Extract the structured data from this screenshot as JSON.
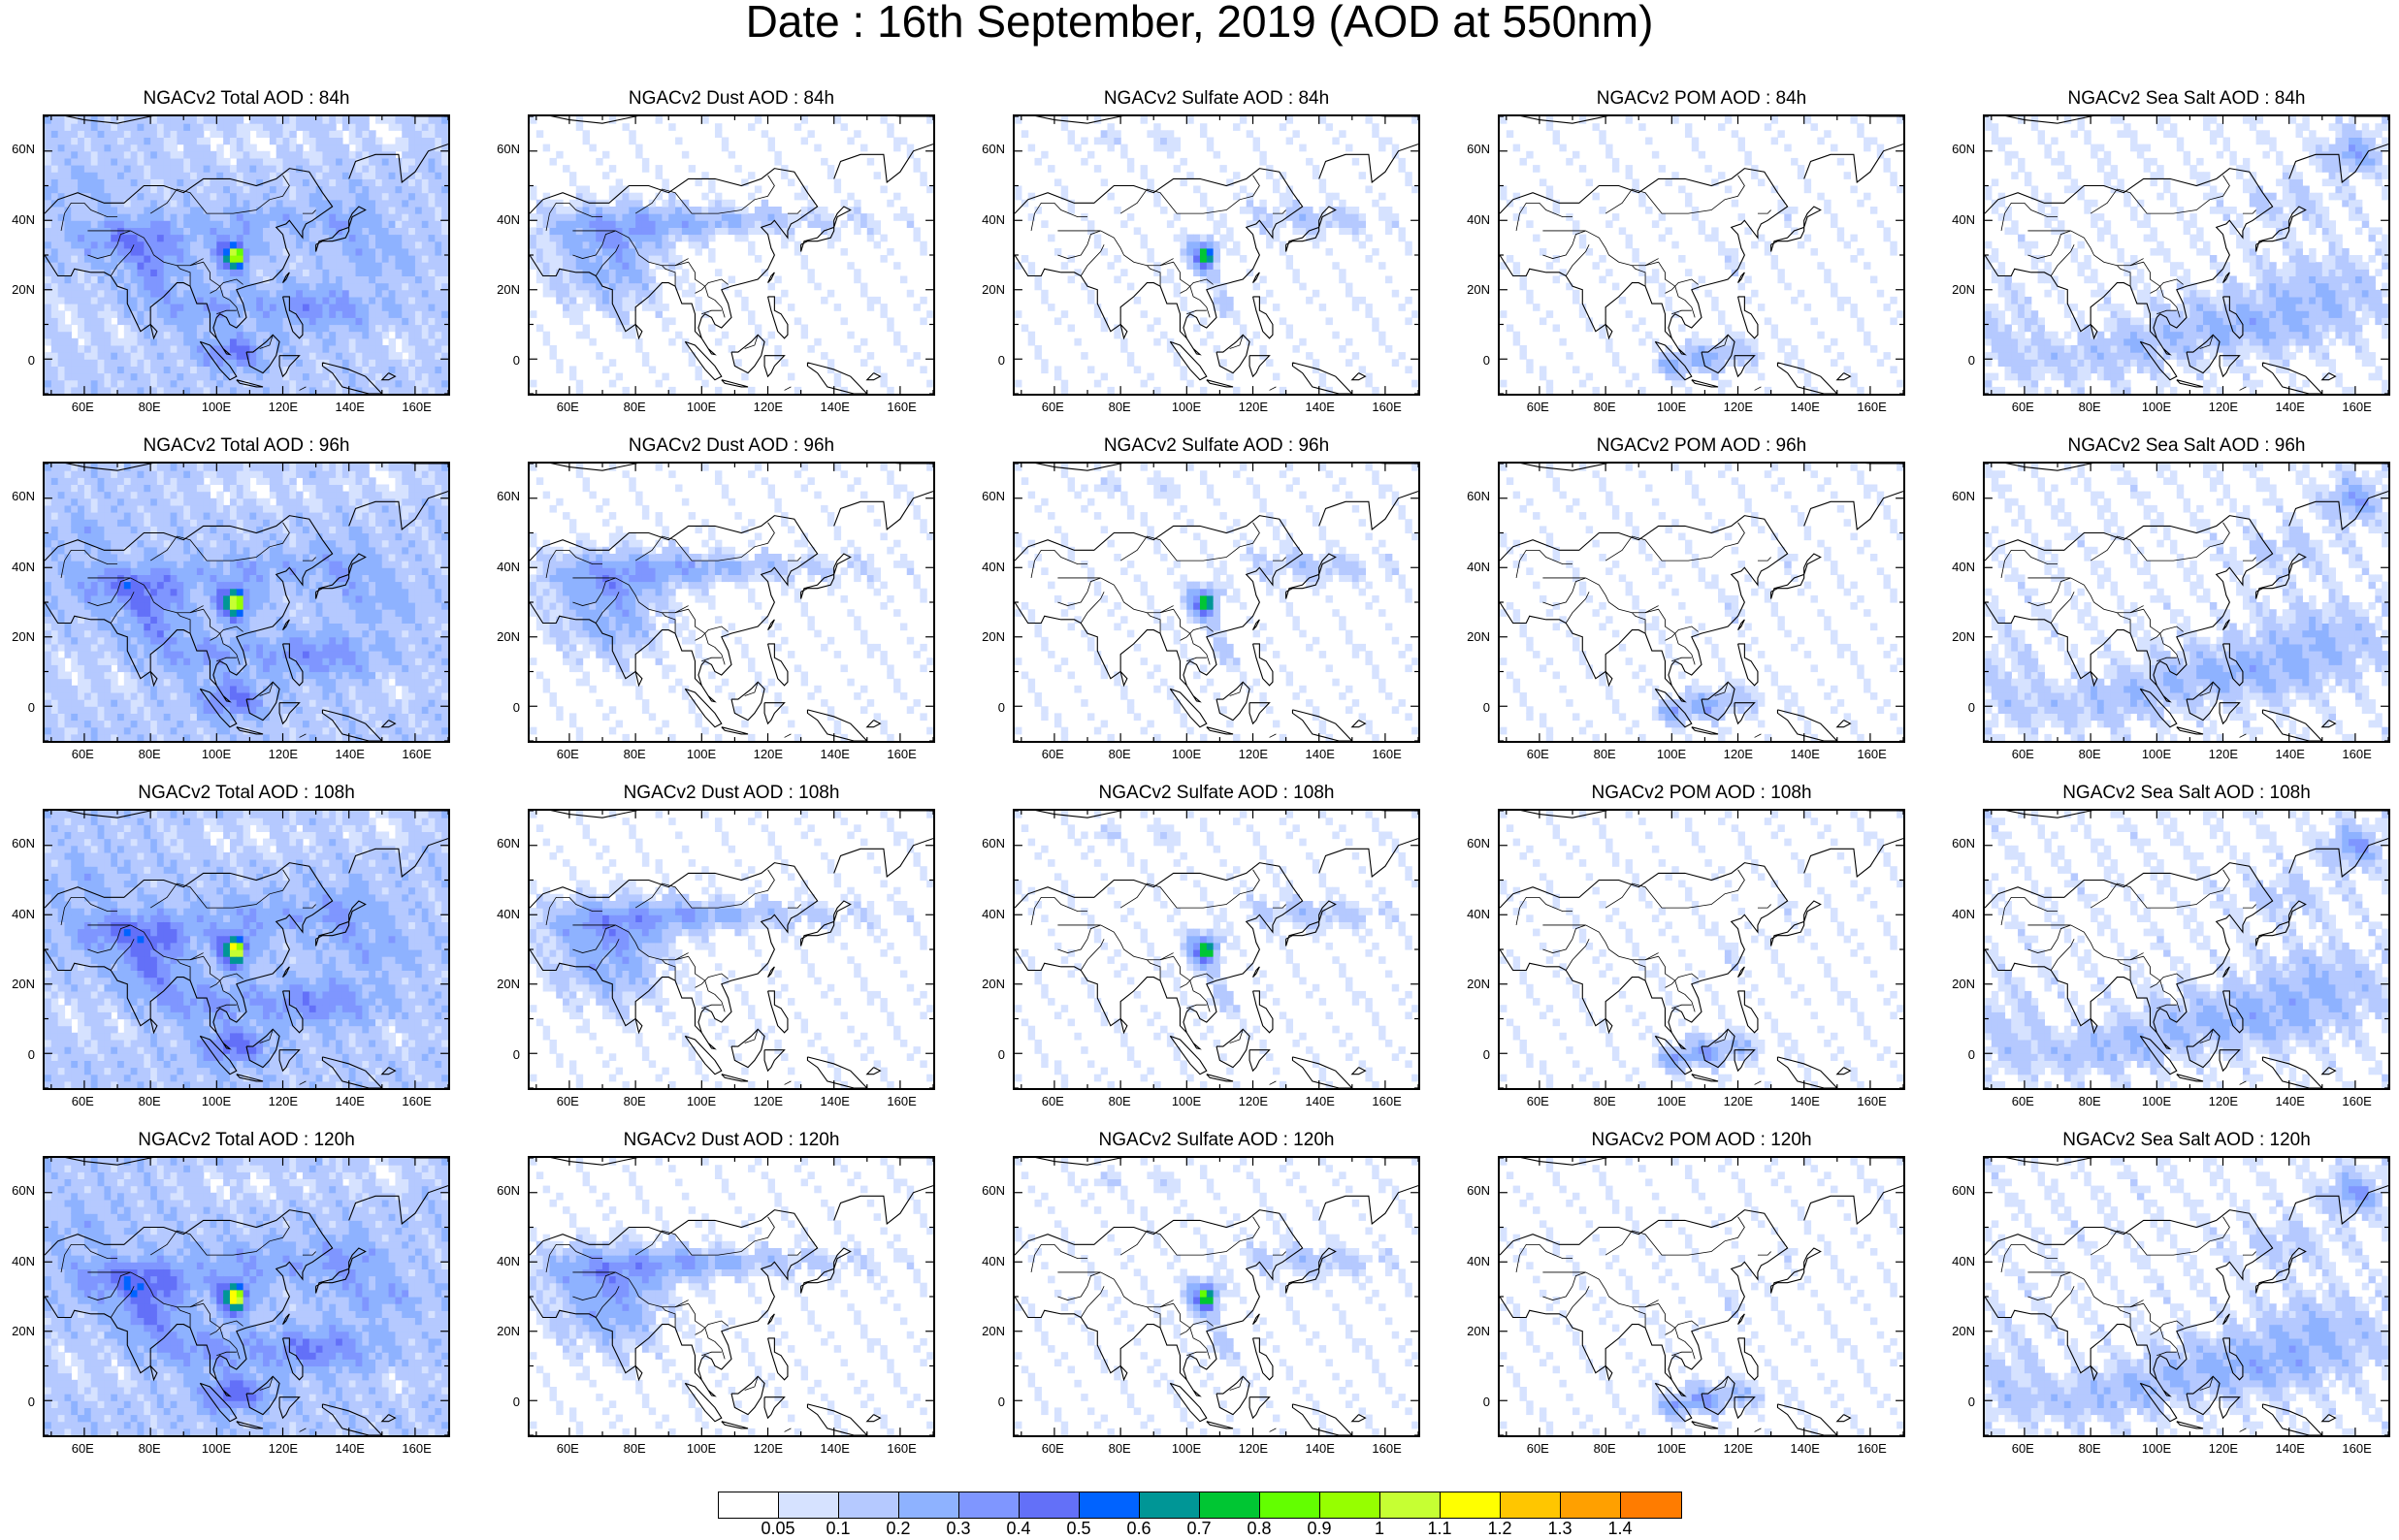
{
  "title": "Date : 16th September, 2019 (AOD at 550nm)",
  "lat_ticks": [
    "60N",
    "40N",
    "20N",
    "0"
  ],
  "lon_ticks": [
    "60E",
    "80E",
    "100E",
    "120E",
    "140E",
    "160E"
  ],
  "panels": [
    {
      "title": "NGACv2 Total AOD : 84h",
      "species": "total",
      "lead": "84h"
    },
    {
      "title": "NGACv2 Dust AOD : 84h",
      "species": "dust",
      "lead": "84h"
    },
    {
      "title": "NGACv2 Sulfate AOD : 84h",
      "species": "sulfate",
      "lead": "84h"
    },
    {
      "title": "NGACv2 POM AOD : 84h",
      "species": "pom",
      "lead": "84h"
    },
    {
      "title": "NGACv2 Sea Salt AOD : 84h",
      "species": "seasalt",
      "lead": "84h"
    },
    {
      "title": "NGACv2 Total AOD : 96h",
      "species": "total",
      "lead": "96h"
    },
    {
      "title": "NGACv2 Dust AOD : 96h",
      "species": "dust",
      "lead": "96h"
    },
    {
      "title": "NGACv2 Sulfate AOD : 96h",
      "species": "sulfate",
      "lead": "96h"
    },
    {
      "title": "NGACv2 POM AOD : 96h",
      "species": "pom",
      "lead": "96h"
    },
    {
      "title": "NGACv2 Sea Salt AOD : 96h",
      "species": "seasalt",
      "lead": "96h"
    },
    {
      "title": "NGACv2 Total AOD : 108h",
      "species": "total",
      "lead": "108h"
    },
    {
      "title": "NGACv2 Dust AOD : 108h",
      "species": "dust",
      "lead": "108h"
    },
    {
      "title": "NGACv2 Sulfate AOD : 108h",
      "species": "sulfate",
      "lead": "108h"
    },
    {
      "title": "NGACv2 POM AOD : 108h",
      "species": "pom",
      "lead": "108h"
    },
    {
      "title": "NGACv2 Sea Salt AOD : 108h",
      "species": "seasalt",
      "lead": "108h"
    },
    {
      "title": "NGACv2 Total AOD : 120h",
      "species": "total",
      "lead": "120h"
    },
    {
      "title": "NGACv2 Dust AOD : 120h",
      "species": "dust",
      "lead": "120h"
    },
    {
      "title": "NGACv2 Sulfate AOD : 120h",
      "species": "sulfate",
      "lead": "120h"
    },
    {
      "title": "NGACv2 POM AOD : 120h",
      "species": "pom",
      "lead": "120h"
    },
    {
      "title": "NGACv2 Sea Salt  AOD : 120h",
      "species": "seasalt",
      "lead": "120h"
    }
  ],
  "colorbar": {
    "labels": [
      "0.05",
      "0.1",
      "0.2",
      "0.3",
      "0.4",
      "0.5",
      "0.6",
      "0.7",
      "0.8",
      "0.9",
      "1",
      "1.1",
      "1.2",
      "1.3",
      "1.4"
    ],
    "colors": [
      "#ffffff",
      "#d6e2ff",
      "#b5c9ff",
      "#8eb2ff",
      "#7f96ff",
      "#6370f8",
      "#0063ff",
      "#009696",
      "#00c633",
      "#63ff00",
      "#96ff00",
      "#c6ff33",
      "#ffff00",
      "#ffc600",
      "#ffa000",
      "#ff7c00",
      "#ff1900"
    ]
  },
  "map_style": {
    "coastline_color": "#000000",
    "background": "#ffffff"
  }
}
